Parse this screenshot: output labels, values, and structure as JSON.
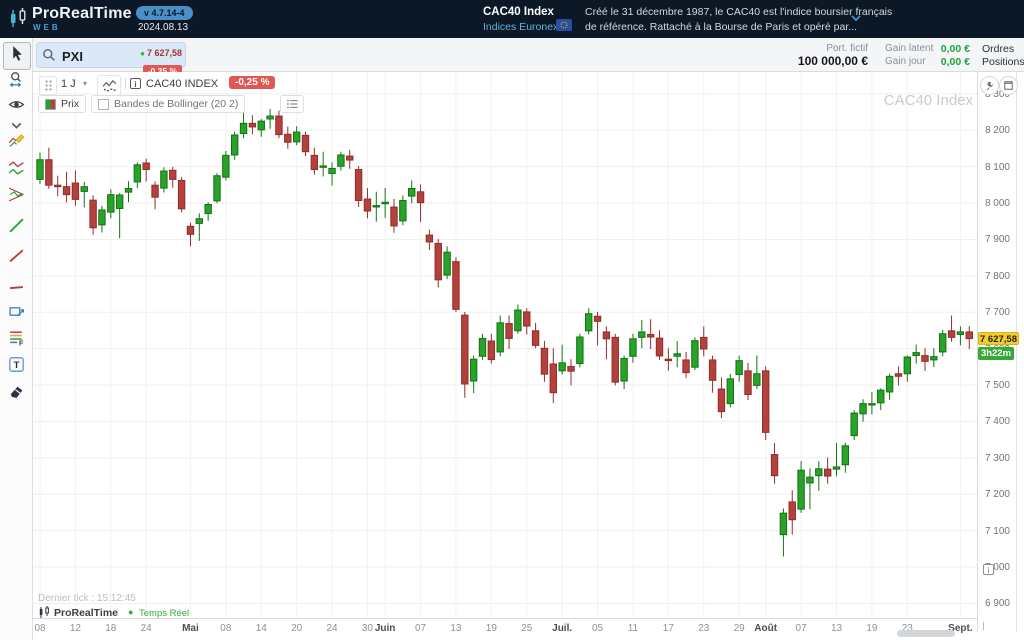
{
  "header": {
    "brand": "ProRealTime",
    "brand_sub": "WEB",
    "version": "v 4.7.14-4",
    "date": "2024.08.13",
    "instrument": "CAC40 Index",
    "market": "Indices Euronext",
    "desc1": "Créé le 31 décembre 1987, le CAC40 est l'indice boursier français",
    "desc2": "de référence. Rattaché à la Bourse de Paris et opéré par..."
  },
  "quote": {
    "search": "PXI",
    "price": "7 627,58",
    "change": "-0,25 %"
  },
  "portfolio": {
    "label": "Port. fictif",
    "value": "100 000,00 €",
    "latent_label": "Gain latent",
    "latent_value": "0,00 €",
    "day_label": "Gain jour",
    "day_value": "0,00 €",
    "orders": "Ordres",
    "positions": "Positions"
  },
  "chart_toolbar": {
    "timeframe": "1 J",
    "instrument": "CAC40 INDEX",
    "price": "7 627,58",
    "change": "-0,25 %"
  },
  "legend": {
    "price": "Prix",
    "bollinger": "Bandes de Bollinger (20 2)"
  },
  "watermark": "CAC40 Index",
  "price_axis": {
    "tick_labels": [
      "8 300",
      "8 200",
      "8 100",
      "8 000",
      "7 900",
      "7 800",
      "7 700",
      "7 600",
      "7 500",
      "7 400",
      "7 300",
      "7 200",
      "7 100",
      "7 000",
      "6 900"
    ],
    "last_label": "7 627,58",
    "last_value": 7627.58,
    "countdown": "3h22m"
  },
  "time_axis": {
    "ticks": [
      {
        "label": "08",
        "i": 0
      },
      {
        "label": "12",
        "i": 4
      },
      {
        "label": "18",
        "i": 8
      },
      {
        "label": "24",
        "i": 12
      },
      {
        "label": "Mai",
        "i": 17,
        "m": 1
      },
      {
        "label": "08",
        "i": 21
      },
      {
        "label": "14",
        "i": 25
      },
      {
        "label": "20",
        "i": 29
      },
      {
        "label": "24",
        "i": 33
      },
      {
        "label": "30",
        "i": 37
      },
      {
        "label": "Juin",
        "i": 39,
        "m": 1
      },
      {
        "label": "07",
        "i": 43
      },
      {
        "label": "13",
        "i": 47
      },
      {
        "label": "19",
        "i": 51
      },
      {
        "label": "25",
        "i": 55
      },
      {
        "label": "Juil.",
        "i": 59,
        "m": 1
      },
      {
        "label": "05",
        "i": 63
      },
      {
        "label": "11",
        "i": 67
      },
      {
        "label": "17",
        "i": 71
      },
      {
        "label": "23",
        "i": 75
      },
      {
        "label": "29",
        "i": 79
      },
      {
        "label": "Août",
        "i": 82,
        "m": 1
      },
      {
        "label": "07",
        "i": 86
      },
      {
        "label": "13",
        "i": 90
      },
      {
        "label": "19",
        "i": 94
      },
      {
        "label": "23",
        "i": 98
      },
      {
        "label": "Sept.",
        "i": 104,
        "m": 1
      }
    ]
  },
  "footer": {
    "last_tick": "Dernier tick : 15:12:45",
    "brand": "ProRealTime",
    "status": "Temps Réel"
  },
  "sidebar": {
    "tools": [
      "cursor",
      "zoom",
      "view",
      "more",
      "draw",
      "zigzag",
      "pattern",
      "trendup",
      "trenddown",
      "hline",
      "rect",
      "fib",
      "text",
      "eraser"
    ]
  },
  "colors": {
    "up": "#28a228",
    "up_border": "#137413",
    "down": "#b5413d",
    "down_border": "#8e2f2b",
    "grid": "#efefef",
    "badge_red": "#e15753",
    "badge_yellow": "#f3cd2f",
    "badge_green": "#38a938"
  },
  "chart_data": {
    "type": "candlestick",
    "instrument": "CAC40 INDEX",
    "timeframe": "1 J",
    "ylim": [
      6860,
      8360
    ],
    "x_range": "2024-04-08 to 2024-09-03",
    "candles": [
      [
        8065,
        8139,
        8052,
        8119
      ],
      [
        8119,
        8152,
        8039,
        8049
      ],
      [
        8049,
        8075,
        8019,
        8045
      ],
      [
        8045,
        8086,
        8002,
        8023
      ],
      [
        8055,
        8089,
        7992,
        8010
      ],
      [
        8032,
        8058,
        7988,
        8045
      ],
      [
        8008,
        8021,
        7913,
        7932
      ],
      [
        7940,
        7992,
        7919,
        7981
      ],
      [
        7975,
        8038,
        7958,
        8023
      ],
      [
        7985,
        8027,
        7903,
        8022
      ],
      [
        8030,
        8060,
        8002,
        8040
      ],
      [
        8058,
        8112,
        8041,
        8105
      ],
      [
        8110,
        8122,
        8059,
        8092
      ],
      [
        8049,
        8060,
        7983,
        8016
      ],
      [
        8041,
        8098,
        8029,
        8088
      ],
      [
        8090,
        8099,
        8042,
        8065
      ],
      [
        8062,
        8072,
        7974,
        7984
      ],
      [
        7936,
        7946,
        7881,
        7914
      ],
      [
        7944,
        7972,
        7896,
        7957
      ],
      [
        7971,
        8002,
        7951,
        7996
      ],
      [
        8006,
        8082,
        7999,
        8075
      ],
      [
        8071,
        8143,
        8062,
        8131
      ],
      [
        8132,
        8196,
        8119,
        8187
      ],
      [
        8191,
        8248,
        8178,
        8219
      ],
      [
        8219,
        8241,
        8189,
        8209
      ],
      [
        8201,
        8231,
        8182,
        8225
      ],
      [
        8231,
        8259,
        8204,
        8239
      ],
      [
        8239,
        8254,
        8178,
        8188
      ],
      [
        8189,
        8210,
        8149,
        8167
      ],
      [
        8168,
        8211,
        8159,
        8195
      ],
      [
        8186,
        8196,
        8129,
        8141
      ],
      [
        8131,
        8152,
        8078,
        8092
      ],
      [
        8101,
        8141,
        8073,
        8102
      ],
      [
        8081,
        8112,
        8048,
        8095
      ],
      [
        8101,
        8141,
        8089,
        8132
      ],
      [
        8129,
        8146,
        8094,
        8118
      ],
      [
        8092,
        8102,
        7989,
        8007
      ],
      [
        8011,
        8041,
        7958,
        7978
      ],
      [
        7991,
        8031,
        7949,
        7993
      ],
      [
        8001,
        8041,
        7959,
        8002
      ],
      [
        7989,
        8011,
        7918,
        7937
      ],
      [
        7951,
        8021,
        7939,
        8007
      ],
      [
        8019,
        8062,
        7999,
        8040
      ],
      [
        8031,
        8051,
        7948,
        8001
      ],
      [
        7912,
        7927,
        7871,
        7893
      ],
      [
        7889,
        7901,
        7768,
        7789
      ],
      [
        7802,
        7881,
        7791,
        7865
      ],
      [
        7839,
        7851,
        7701,
        7708
      ],
      [
        7692,
        7701,
        7465,
        7503
      ],
      [
        7511,
        7581,
        7478,
        7571
      ],
      [
        7579,
        7641,
        7569,
        7628
      ],
      [
        7621,
        7641,
        7559,
        7570
      ],
      [
        7591,
        7691,
        7579,
        7671
      ],
      [
        7669,
        7691,
        7599,
        7628
      ],
      [
        7649,
        7721,
        7641,
        7706
      ],
      [
        7701,
        7711,
        7639,
        7662
      ],
      [
        7649,
        7671,
        7601,
        7609
      ],
      [
        7601,
        7621,
        7509,
        7530
      ],
      [
        7558,
        7601,
        7451,
        7479
      ],
      [
        7539,
        7611,
        7529,
        7561
      ],
      [
        7551,
        7571,
        7499,
        7538
      ],
      [
        7559,
        7641,
        7549,
        7632
      ],
      [
        7649,
        7711,
        7639,
        7696
      ],
      [
        7689,
        7701,
        7609,
        7675
      ],
      [
        7646,
        7661,
        7571,
        7627
      ],
      [
        7631,
        7641,
        7499,
        7508
      ],
      [
        7511,
        7581,
        7489,
        7573
      ],
      [
        7579,
        7641,
        7561,
        7627
      ],
      [
        7631,
        7679,
        7601,
        7646
      ],
      [
        7639,
        7681,
        7599,
        7632
      ],
      [
        7629,
        7651,
        7569,
        7580
      ],
      [
        7571,
        7601,
        7539,
        7570
      ],
      [
        7579,
        7621,
        7549,
        7586
      ],
      [
        7569,
        7591,
        7519,
        7534
      ],
      [
        7549,
        7631,
        7541,
        7622
      ],
      [
        7631,
        7661,
        7579,
        7599
      ],
      [
        7569,
        7581,
        7479,
        7513
      ],
      [
        7489,
        7521,
        7409,
        7427
      ],
      [
        7449,
        7531,
        7439,
        7517
      ],
      [
        7529,
        7581,
        7509,
        7567
      ],
      [
        7539,
        7561,
        7459,
        7474
      ],
      [
        7499,
        7581,
        7489,
        7531
      ],
      [
        7539,
        7551,
        7349,
        7370
      ],
      [
        7309,
        7341,
        7229,
        7251
      ],
      [
        7089,
        7161,
        7029,
        7148
      ],
      [
        7179,
        7211,
        7089,
        7130
      ],
      [
        7159,
        7291,
        7149,
        7266
      ],
      [
        7231,
        7271,
        7159,
        7247
      ],
      [
        7251,
        7291,
        7209,
        7270
      ],
      [
        7269,
        7301,
        7229,
        7250
      ],
      [
        7269,
        7341,
        7249,
        7275
      ],
      [
        7281,
        7341,
        7259,
        7333
      ],
      [
        7361,
        7431,
        7349,
        7423
      ],
      [
        7421,
        7461,
        7399,
        7449
      ],
      [
        7449,
        7481,
        7419,
        7449
      ],
      [
        7451,
        7491,
        7431,
        7486
      ],
      [
        7481,
        7531,
        7459,
        7524
      ],
      [
        7531,
        7551,
        7499,
        7524
      ],
      [
        7531,
        7581,
        7509,
        7577
      ],
      [
        7581,
        7611,
        7559,
        7589
      ],
      [
        7581,
        7601,
        7539,
        7565
      ],
      [
        7569,
        7601,
        7549,
        7578
      ],
      [
        7591,
        7651,
        7579,
        7641
      ],
      [
        7649,
        7691,
        7619,
        7631
      ],
      [
        7639,
        7661,
        7609,
        7646
      ],
      [
        7646,
        7662,
        7599,
        7627.58
      ]
    ]
  }
}
